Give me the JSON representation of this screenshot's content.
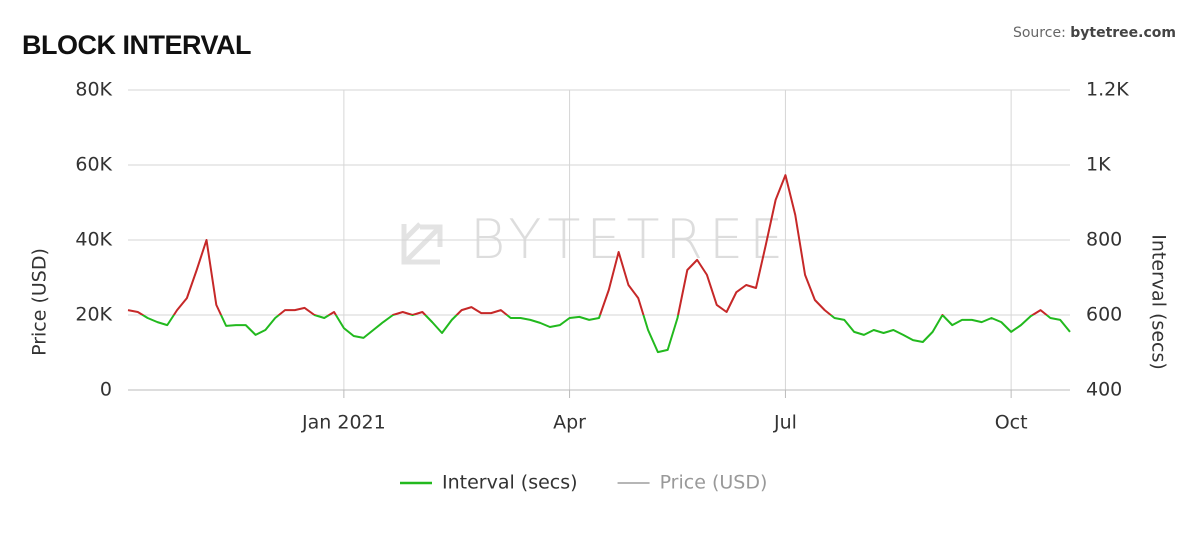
{
  "chart_data": {
    "type": "line",
    "title": "BLOCK INTERVAL",
    "source_label": "Source:",
    "source": "bytetree.com",
    "watermark": "BYTETREE",
    "y_label": "Price (USD)",
    "y2_label": "Interval (secs)",
    "categories": [
      null,
      null,
      null,
      null,
      null,
      null,
      null,
      null,
      null,
      null,
      null,
      null,
      null,
      null,
      null,
      null,
      null,
      null,
      null,
      null,
      null,
      null,
      "Jan 2021",
      null,
      null,
      null,
      null,
      null,
      null,
      null,
      null,
      null,
      null,
      null,
      null,
      null,
      null,
      null,
      null,
      null,
      null,
      null,
      null,
      null,
      null,
      "Apr",
      null,
      null,
      null,
      null,
      null,
      null,
      null,
      null,
      null,
      null,
      null,
      null,
      null,
      null,
      null,
      null,
      null,
      null,
      null,
      null,
      null,
      "Jul",
      null,
      null,
      null,
      null,
      null,
      null,
      null,
      null,
      null,
      null,
      null,
      null,
      null,
      null,
      null,
      null,
      null,
      null,
      null,
      null,
      null,
      null,
      "Oct",
      null,
      null,
      null,
      null,
      null,
      null
    ],
    "ylim": [
      0,
      80000
    ],
    "yticks": [
      0,
      {
        "value": 20000,
        "label": "20K"
      },
      {
        "value": 40000,
        "label": "40K"
      },
      {
        "value": 60000,
        "label": "60K"
      },
      {
        "value": 80000,
        "label": "80K"
      }
    ],
    "y2lim": [
      400,
      1200
    ],
    "y2ticks": [
      400,
      600,
      800,
      {
        "value": 1000,
        "label": "1K"
      },
      {
        "value": 1200,
        "label": "1.2K"
      }
    ],
    "grid": true,
    "threshold": 600,
    "above_color": "#c62828",
    "series": [
      {
        "name": "Interval (secs)",
        "color": "#22b91e",
        "axis": "y2",
        "values": [
          613,
          608,
          592,
          581,
          573,
          613,
          645,
          720,
          800,
          627,
          571,
          573,
          573,
          547,
          560,
          592,
          613,
          613,
          619,
          600,
          592,
          608,
          565,
          544,
          539,
          560,
          581,
          600,
          608,
          600,
          608,
          581,
          552,
          587,
          613,
          621,
          605,
          605,
          613,
          592,
          592,
          587,
          579,
          568,
          573,
          592,
          595,
          587,
          592,
          667,
          768,
          680,
          645,
          560,
          501,
          507,
          592,
          720,
          747,
          707,
          627,
          608,
          661,
          680,
          672,
          787,
          907,
          973,
          867,
          707,
          640,
          613,
          592,
          587,
          555,
          547,
          560,
          552,
          560,
          547,
          533,
          528,
          555,
          600,
          573,
          587,
          587,
          581,
          592,
          581,
          555,
          573,
          597,
          613,
          592,
          587,
          555
        ]
      },
      {
        "name": "Price (USD)",
        "color": "#9e9e9e",
        "hidden": true,
        "values": [
          null,
          null,
          null,
          null,
          null,
          null,
          null,
          null,
          null,
          null,
          null,
          null,
          null,
          null,
          null,
          null,
          null,
          null,
          null,
          null,
          null,
          null,
          null,
          null,
          null,
          null,
          null,
          null,
          null,
          null,
          null,
          null,
          null,
          null,
          null,
          null,
          null,
          null,
          null,
          null,
          null,
          null,
          null,
          null,
          null,
          null,
          null,
          null,
          null,
          null,
          null,
          null,
          null,
          null,
          null,
          null,
          null,
          null,
          null,
          null,
          null,
          null,
          null,
          null,
          null,
          null,
          null,
          null,
          null,
          null,
          null,
          null,
          null,
          null,
          null,
          null,
          null,
          null,
          null,
          null,
          null,
          null,
          null,
          null,
          null,
          null,
          null,
          null,
          null,
          null,
          null,
          null,
          null,
          null,
          null,
          null,
          null
        ]
      }
    ]
  }
}
